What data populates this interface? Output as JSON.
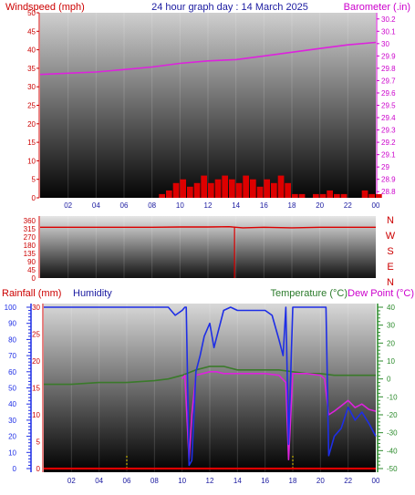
{
  "header": {
    "title": "24 hour graph day : 14 March 2025",
    "left_label": "Windspeed (mph)",
    "right_label": "Barometer (.in)"
  },
  "lower_header": {
    "rainfall": "Rainfall (mm)",
    "humidity": "Humidity",
    "temperature": "Temperature (°C)",
    "dewpoint": "Dew Point (°C)"
  },
  "colors": {
    "wind": "#dd0000",
    "barometer": "#dd22dd",
    "direction": "#dd0000",
    "humidity": "#1e2ee6",
    "temperature": "#3a7a2a",
    "dewpoint": "#dd22dd",
    "rain": "#dd0000",
    "left_axis": "#cc0000",
    "right_axis": "#cc00cc",
    "temp_axis": "#2a8a2a",
    "hum_axis": "#1e2ee6"
  },
  "chart_data": [
    {
      "type": "line",
      "name": "wind-barometer",
      "x_tick_labels": [
        "02",
        "04",
        "06",
        "08",
        "10",
        "12",
        "14",
        "16",
        "18",
        "20",
        "22",
        "00"
      ],
      "xlim": [
        0,
        24
      ],
      "left_axis": {
        "ticks": [
          "0",
          "5",
          "10",
          "15",
          "20",
          "25",
          "30",
          "35",
          "40",
          "45",
          "50"
        ],
        "ylim": [
          0,
          50
        ]
      },
      "right_axis": {
        "ticks": [
          "28.8",
          "28.9",
          "29",
          "29.1",
          "29.2",
          "29.3",
          "29.4",
          "29.5",
          "29.6",
          "29.7",
          "29.8",
          "29.9",
          "30",
          "30.1",
          "30.2"
        ],
        "ylim": [
          28.75,
          30.25
        ]
      },
      "series": [
        {
          "name": "Barometer (.in)",
          "x": [
            0,
            2,
            4,
            6,
            8,
            10,
            12,
            14,
            16,
            18,
            20,
            22,
            24
          ],
          "values": [
            29.75,
            29.76,
            29.77,
            29.79,
            29.81,
            29.84,
            29.86,
            29.87,
            29.9,
            29.93,
            29.96,
            29.99,
            30.01
          ]
        },
        {
          "name": "Windspeed (mph)",
          "x": [
            8.0,
            8.5,
            9.0,
            9.5,
            10.0,
            10.5,
            11.0,
            11.5,
            12.0,
            12.5,
            13.0,
            13.5,
            14.0,
            14.5,
            15.0,
            15.5,
            16.0,
            16.5,
            17.0,
            17.5,
            18.0,
            18.5,
            19.0,
            19.5,
            20.0,
            20.5,
            21.0,
            21.5,
            22.0,
            22.5,
            23.0,
            23.5,
            24.0
          ],
          "values": [
            0,
            1,
            2,
            4,
            5,
            3,
            4,
            6,
            4,
            5,
            6,
            5,
            4,
            6,
            5,
            3,
            5,
            4,
            6,
            4,
            1,
            1,
            0,
            1,
            1,
            2,
            1,
            1,
            0,
            0,
            2,
            1,
            1
          ]
        }
      ]
    },
    {
      "type": "line",
      "name": "wind-direction",
      "x_tick_labels": [],
      "xlim": [
        0,
        24
      ],
      "left_axis": {
        "ticks": [
          "360",
          "315",
          "270",
          "180",
          "135",
          "90",
          "45",
          "0"
        ],
        "ylim": [
          0,
          360
        ]
      },
      "compass": [
        "N",
        "W",
        "S",
        "E",
        "N"
      ],
      "series": [
        {
          "name": "Wind direction",
          "x": [
            0,
            2,
            4,
            6,
            8,
            10,
            12,
            13.5,
            14.5,
            16,
            18,
            20,
            22,
            24
          ],
          "values": [
            318,
            318,
            318,
            318,
            318,
            320,
            320,
            322,
            315,
            318,
            315,
            318,
            318,
            318
          ]
        }
      ],
      "annotations": [
        {
          "x": 13.9,
          "from": 320,
          "to": 0,
          "note": ""
        }
      ]
    },
    {
      "type": "line",
      "name": "rain-humidity-temp",
      "x_tick_labels": [
        "02",
        "04",
        "06",
        "08",
        "10",
        "12",
        "14",
        "16",
        "18",
        "20",
        "22",
        "00"
      ],
      "xlim": [
        0,
        24
      ],
      "left_axis": {
        "ticks": [
          "0",
          "10",
          "20",
          "30",
          "40",
          "50",
          "60",
          "70",
          "80",
          "90",
          "100"
        ],
        "ylim": [
          0,
          100
        ]
      },
      "rain_axis": {
        "ticks": [
          "0",
          "5",
          "10",
          "15",
          "20",
          "25",
          "30"
        ],
        "ylim": [
          0,
          30
        ]
      },
      "right_axis": {
        "ticks": [
          "-50",
          "-40",
          "-30",
          "-20",
          "-10",
          "0",
          "10",
          "20",
          "30",
          "40"
        ],
        "ylim": [
          -50,
          40
        ]
      },
      "series": [
        {
          "name": "Humidity",
          "x": [
            0,
            8,
            9,
            9.5,
            10,
            10.2,
            10.3,
            10.5,
            10.7,
            11,
            11.3,
            11.6,
            12,
            12.3,
            13,
            13.5,
            14,
            15,
            16,
            16.5,
            17,
            17.3,
            17.5,
            17.7,
            18,
            18.5,
            19,
            20,
            20.4,
            20.6,
            21,
            21.5,
            22,
            22.5,
            23,
            23.5,
            24
          ],
          "values": [
            100,
            100,
            100,
            95,
            98,
            100,
            100,
            2,
            5,
            60,
            70,
            82,
            90,
            75,
            98,
            100,
            98,
            98,
            98,
            95,
            80,
            70,
            100,
            15,
            100,
            100,
            100,
            100,
            100,
            8,
            20,
            25,
            38,
            30,
            35,
            28,
            20
          ]
        },
        {
          "name": "Temperature (°C)",
          "x": [
            0,
            2,
            4,
            6,
            8,
            9,
            10,
            11,
            12,
            13,
            14,
            15,
            16,
            17,
            18,
            19,
            20,
            21,
            22,
            23,
            24
          ],
          "values": [
            -3,
            -3,
            -2,
            -2,
            -1,
            0,
            2,
            5,
            7,
            7,
            5,
            5,
            5,
            5,
            4,
            3,
            3,
            2,
            2,
            2,
            2
          ]
        },
        {
          "name": "Dew Point (°C)",
          "x": [
            10,
            10.2,
            10.5,
            10.7,
            11,
            11.5,
            12,
            12.5,
            13,
            14,
            15,
            16,
            17,
            17.5,
            17.7,
            18,
            19,
            20,
            20.3,
            20.6,
            21,
            21.5,
            22,
            22.5,
            23,
            23.5,
            24
          ],
          "values": [
            0,
            2,
            -45,
            -20,
            2,
            3,
            4,
            4,
            3,
            3,
            3,
            3,
            2,
            -2,
            -45,
            3,
            3,
            2,
            0,
            -20,
            -18,
            -15,
            -12,
            -16,
            -14,
            -17,
            -18
          ]
        },
        {
          "name": "Rainfall (mm)",
          "x": [
            0,
            24
          ],
          "values": [
            0,
            0
          ]
        }
      ]
    }
  ]
}
